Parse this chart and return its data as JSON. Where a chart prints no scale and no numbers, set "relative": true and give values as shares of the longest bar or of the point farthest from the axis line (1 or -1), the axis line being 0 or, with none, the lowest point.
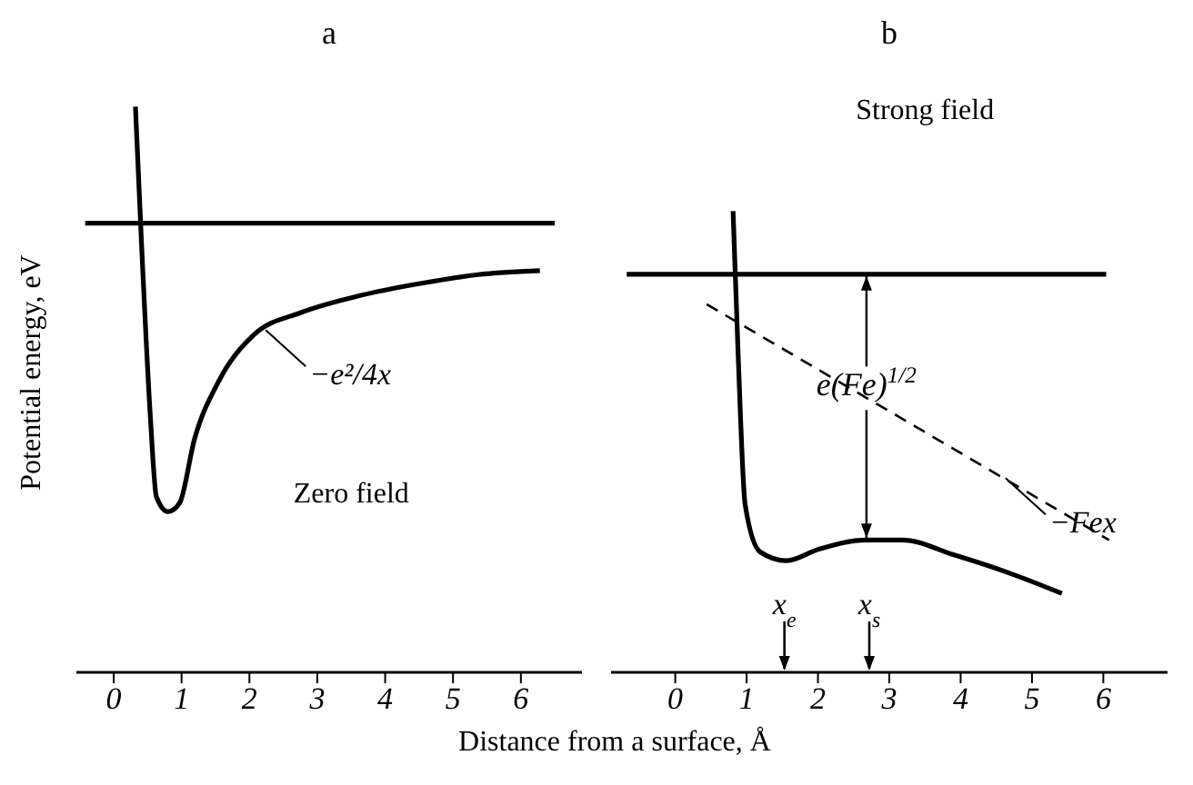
{
  "chart_data": [
    {
      "type": "line",
      "title": "a",
      "xlabel": "Distance from a surface, Å",
      "ylabel": "Potential energy, eV",
      "relative": true,
      "xlim": [
        -0.55,
        6.9
      ],
      "xticks": [
        0,
        1,
        2,
        3,
        4,
        5,
        6
      ],
      "series": [
        {
          "color": "#000000",
          "x": [
            0.32,
            0.41,
            0.54,
            0.63,
            0.8,
            0.97,
            1.19,
            1.54,
            2.06,
            2.76,
            3.63,
            4.5,
            5.37,
            6.28
          ],
          "values": [
            1.0,
            0.758,
            0.452,
            0.31,
            0.284,
            0.299,
            0.412,
            0.513,
            0.596,
            0.636,
            0.666,
            0.687,
            0.703,
            0.71
          ]
        },
        {
          "color": "#000000",
          "x": [
            -0.42,
            6.5
          ],
          "values": [
            0.794,
            0.794
          ]
        }
      ],
      "annotations": [
        "Zero field",
        {
          "text": "−e²/4x",
          "x": 2.24,
          "y": 0.605
        }
      ]
    },
    {
      "type": "line",
      "title": "b",
      "relative": true,
      "xlim": [
        -0.9,
        6.9
      ],
      "xticks": [
        0,
        1,
        2,
        3,
        4,
        5,
        6
      ],
      "series": [
        {
          "color": "#000000",
          "x": [
            0.81,
            0.88,
            0.98,
            1.19,
            1.56,
            2.01,
            2.68,
            3.18,
            3.92,
            4.67,
            5.42
          ],
          "values": [
            1.0,
            0.695,
            0.363,
            0.261,
            0.242,
            0.267,
            0.287,
            0.287,
            0.254,
            0.216,
            0.171
          ]
        },
        {
          "color": "#000000",
          "x": [
            -0.68,
            6.04
          ],
          "values": [
            0.863,
            0.863
          ]
        },
        {
          "color": "#000000",
          "line_style": "dashed",
          "x": [
            0.44,
            6.08
          ],
          "values": [
            0.798,
            0.287
          ]
        }
      ],
      "annotations": [
        "Strong field",
        {
          "text": "e(Fe)$^{1/2}$",
          "x": 2.68,
          "y": 0.6
        },
        {
          "text": "−Fex",
          "x": 4.63,
          "y": 0.421
        },
        "x$_{e}$",
        "x$_{s}$"
      ]
    }
  ]
}
